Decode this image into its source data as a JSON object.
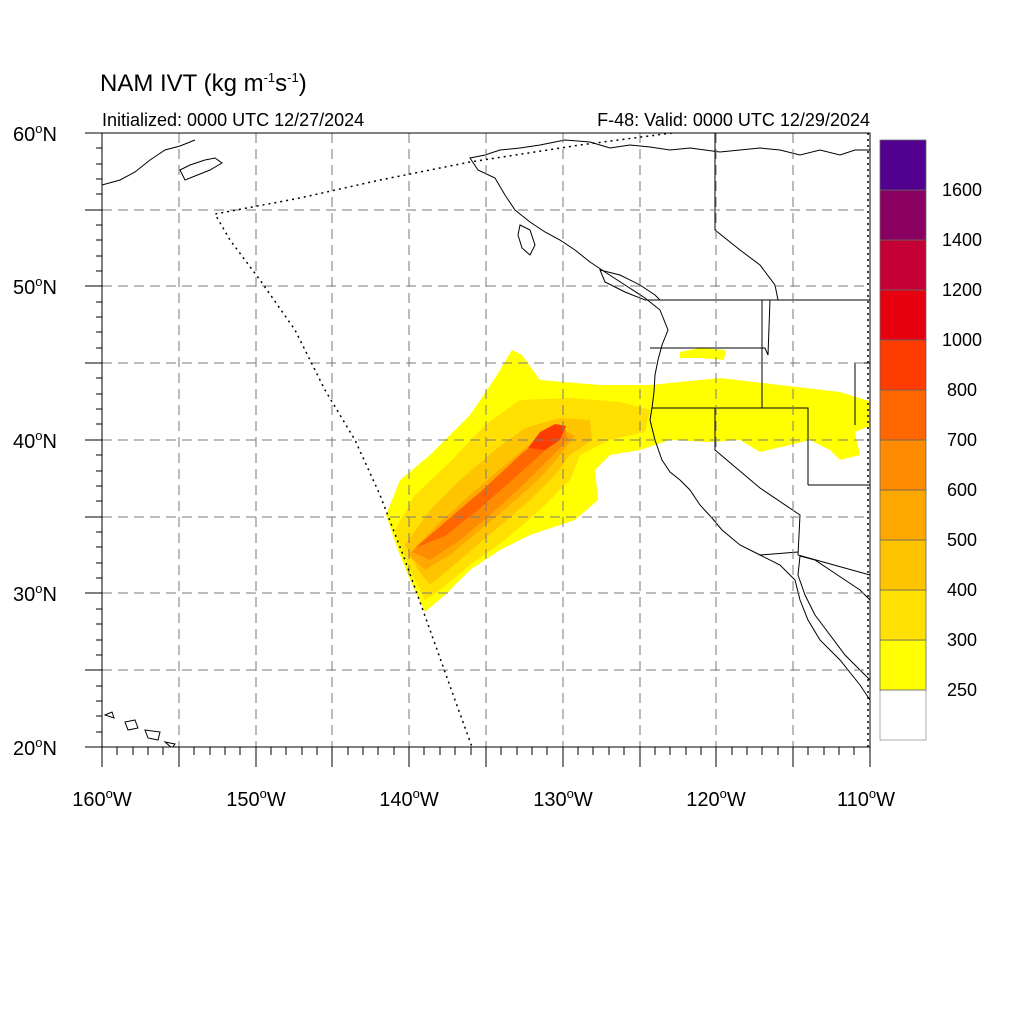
{
  "title": {
    "text": "NAM IVT (kg m",
    "exp1": "-1",
    "mid": "s",
    "exp2": "-1",
    "close": ")"
  },
  "initialized": "Initialized: 0000 UTC 12/27/2024",
  "valid": "F-48: Valid: 0000 UTC 12/29/2024",
  "lat_labels": [
    "60",
    "50",
    "40",
    "30",
    "20"
  ],
  "lat_suffix": "N",
  "lon_labels": [
    "160",
    "150",
    "140",
    "130",
    "120",
    "110"
  ],
  "lon_suffix": "W",
  "degree_symbol": "o",
  "colorbar": {
    "labels": [
      "250",
      "300",
      "400",
      "500",
      "600",
      "700",
      "800",
      "1000",
      "1200",
      "1400",
      "1600"
    ],
    "colors": [
      "#ffffff",
      "#ffff00",
      "#ffe000",
      "#ffc400",
      "#ffa800",
      "#ff8c00",
      "#ff6600",
      "#ff3c00",
      "#e60010",
      "#c40036",
      "#8a0060",
      "#52008f"
    ]
  },
  "map_colors": {
    "land_line": "#000000",
    "grid": "#7a7a7a"
  }
}
